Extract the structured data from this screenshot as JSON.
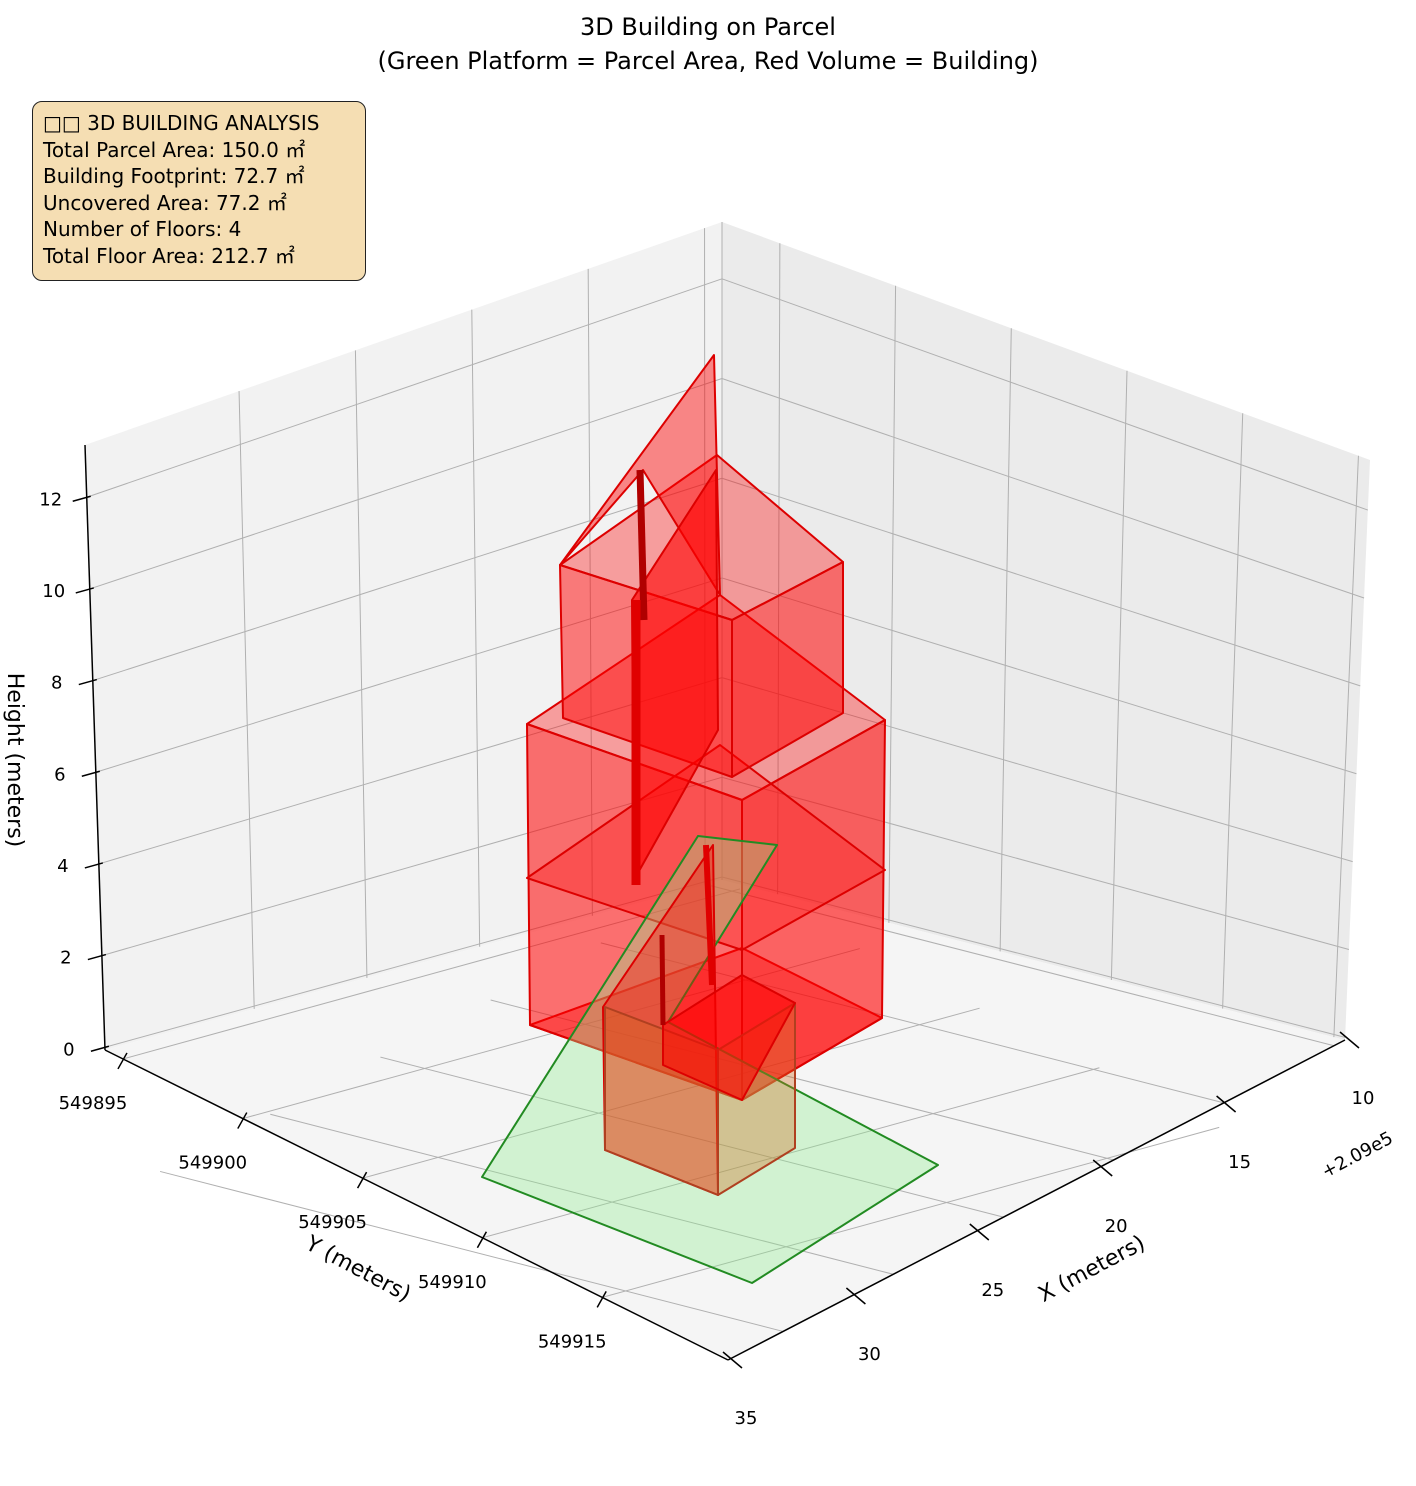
{
  "chart_data": {
    "type": "3d-polygon",
    "title": "3D Building on Parcel",
    "subtitle": "(Green Platform = Parcel Area, Red Volume = Building)",
    "xlabel": "X (meters)",
    "ylabel": "Y (meters)",
    "zlabel": "Height (meters)",
    "x_offset_label": "+2.09e5",
    "x_ticks": [
      "10",
      "15",
      "20",
      "25",
      "30",
      "35"
    ],
    "y_ticks": [
      "549895",
      "549900",
      "549905",
      "549910",
      "549915"
    ],
    "z_ticks": [
      "0",
      "2",
      "4",
      "6",
      "8",
      "10",
      "12"
    ],
    "zlim": [
      0,
      12
    ],
    "grid": true,
    "series": [
      {
        "name": "Parcel Area",
        "color": "#90ee90",
        "edge": "#228b22",
        "z": 0
      },
      {
        "name": "Building",
        "color": "#ff0000",
        "edge": "#cc0000",
        "floors": 4
      }
    ]
  },
  "info": {
    "heading": "□□ 3D BUILDING ANALYSIS",
    "lines": [
      "Total Parcel Area: 150.0 ㎡",
      "Building Footprint: 72.7 ㎡",
      "Uncovered Area: 77.2 ㎡",
      "Number of Floors: 4",
      "Total Floor Area: 212.7 ㎡"
    ]
  }
}
